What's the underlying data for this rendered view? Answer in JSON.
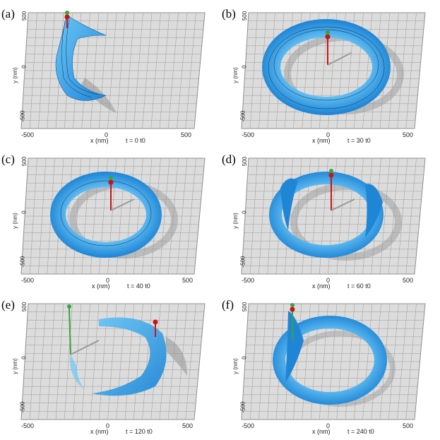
{
  "figure": {
    "x_axis_label": "x (nm)",
    "y_axis_label": "y (nm)",
    "x_ticks": [
      "-500",
      "0",
      "500"
    ],
    "y_ticks": [
      "500",
      "0",
      "-500"
    ],
    "colors": {
      "floor": "#dcdcdc",
      "grid": "#8f8f8f",
      "surface": "#1f86d6",
      "surface_light": "#6cc6f6",
      "shadow": "#9a9a9a",
      "pin_red": "#c81414",
      "pin_green": "#3aa33a"
    },
    "panels": [
      {
        "label": "(a)",
        "time": "t = 0 t0"
      },
      {
        "label": "(b)",
        "time": "t = 30 t0"
      },
      {
        "label": "(c)",
        "time": "t = 40 t0"
      },
      {
        "label": "(d)",
        "time": "t = 60 t0"
      },
      {
        "label": "(e)",
        "time": "t = 120 t0"
      },
      {
        "label": "(f)",
        "time": "t = 240 t0"
      }
    ]
  }
}
